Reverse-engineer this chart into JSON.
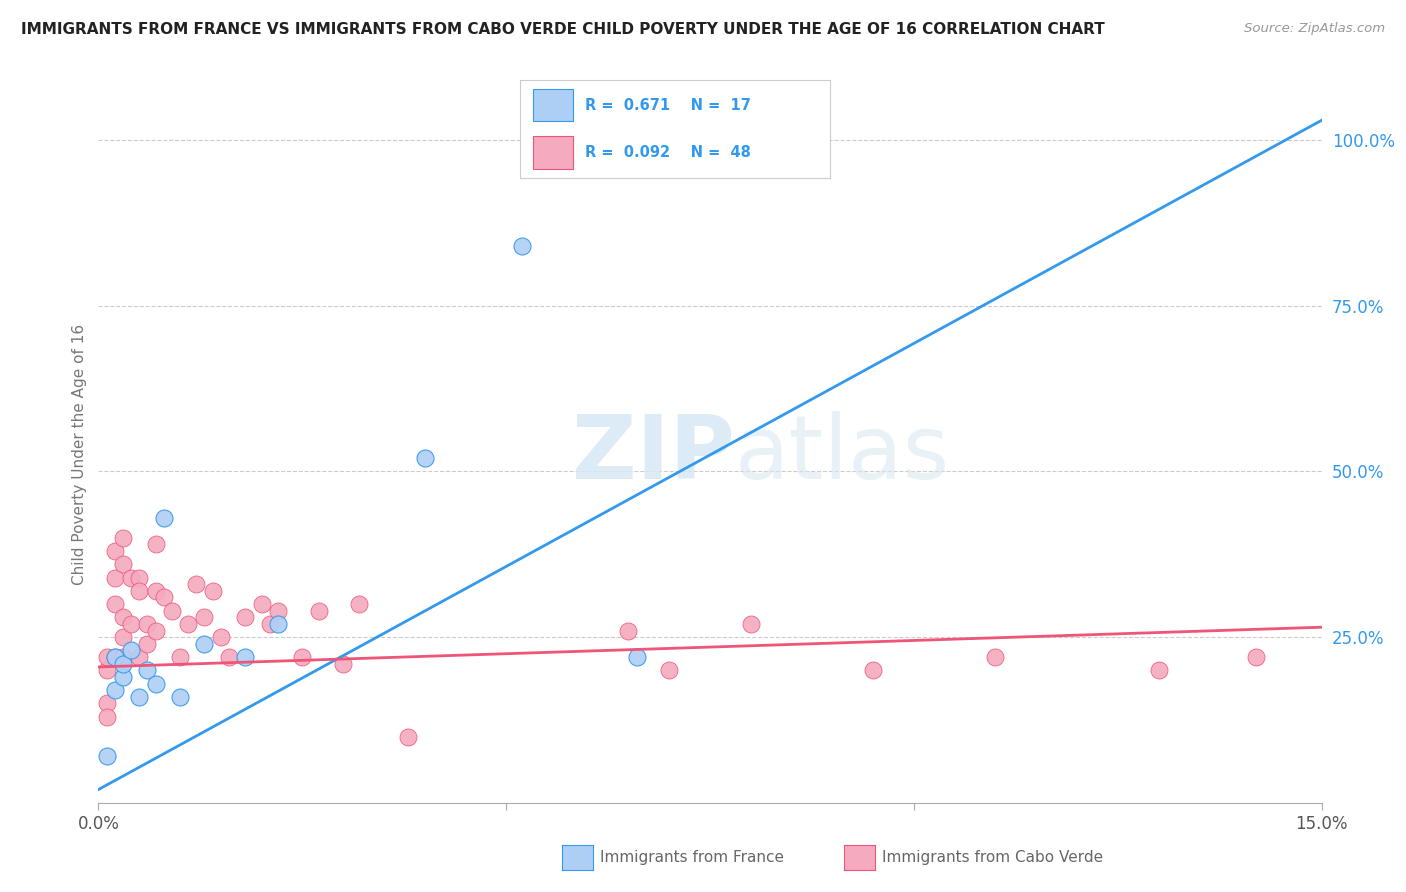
{
  "title": "IMMIGRANTS FROM FRANCE VS IMMIGRANTS FROM CABO VERDE CHILD POVERTY UNDER THE AGE OF 16 CORRELATION CHART",
  "source": "Source: ZipAtlas.com",
  "ylabel": "Child Poverty Under the Age of 16",
  "xlim": [
    0.0,
    0.15
  ],
  "ylim": [
    0.0,
    1.05
  ],
  "x_ticks": [
    0.0,
    0.05,
    0.1,
    0.15
  ],
  "x_tick_labels": [
    "0.0%",
    "",
    "",
    "15.0%"
  ],
  "y_ticks_right": [
    0.25,
    0.5,
    0.75,
    1.0
  ],
  "y_tick_labels_right": [
    "25.0%",
    "50.0%",
    "75.0%",
    "100.0%"
  ],
  "france_color": "#aecff5",
  "caboverde_color": "#f5aabf",
  "france_line_color": "#3399ee",
  "caboverde_line_color": "#ee5577",
  "france_R": 0.671,
  "france_N": 17,
  "caboverde_R": 0.092,
  "caboverde_N": 48,
  "watermark_zip": "ZIP",
  "watermark_atlas": "atlas",
  "background_color": "#ffffff",
  "grid_color": "#cccccc",
  "blue_line_x": [
    0.0,
    0.15
  ],
  "blue_line_y": [
    0.02,
    1.03
  ],
  "pink_line_x": [
    0.0,
    0.15
  ],
  "pink_line_y": [
    0.205,
    0.265
  ],
  "france_scatter_x": [
    0.001,
    0.002,
    0.002,
    0.003,
    0.003,
    0.004,
    0.005,
    0.006,
    0.007,
    0.008,
    0.01,
    0.013,
    0.018,
    0.022,
    0.04,
    0.052,
    0.066
  ],
  "france_scatter_y": [
    0.07,
    0.17,
    0.22,
    0.19,
    0.21,
    0.23,
    0.16,
    0.2,
    0.18,
    0.43,
    0.16,
    0.24,
    0.22,
    0.27,
    0.52,
    0.84,
    0.22
  ],
  "caboverde_scatter_x": [
    0.001,
    0.001,
    0.001,
    0.001,
    0.002,
    0.002,
    0.002,
    0.002,
    0.003,
    0.003,
    0.003,
    0.003,
    0.003,
    0.004,
    0.004,
    0.005,
    0.005,
    0.005,
    0.006,
    0.006,
    0.007,
    0.007,
    0.007,
    0.008,
    0.009,
    0.01,
    0.011,
    0.012,
    0.013,
    0.014,
    0.015,
    0.016,
    0.018,
    0.02,
    0.021,
    0.022,
    0.025,
    0.027,
    0.03,
    0.032,
    0.038,
    0.065,
    0.07,
    0.08,
    0.095,
    0.11,
    0.13,
    0.142
  ],
  "caboverde_scatter_y": [
    0.2,
    0.22,
    0.15,
    0.13,
    0.38,
    0.34,
    0.3,
    0.22,
    0.4,
    0.36,
    0.28,
    0.25,
    0.22,
    0.34,
    0.27,
    0.34,
    0.32,
    0.22,
    0.27,
    0.24,
    0.26,
    0.39,
    0.32,
    0.31,
    0.29,
    0.22,
    0.27,
    0.33,
    0.28,
    0.32,
    0.25,
    0.22,
    0.28,
    0.3,
    0.27,
    0.29,
    0.22,
    0.29,
    0.21,
    0.3,
    0.1,
    0.26,
    0.2,
    0.27,
    0.2,
    0.22,
    0.2,
    0.22
  ]
}
